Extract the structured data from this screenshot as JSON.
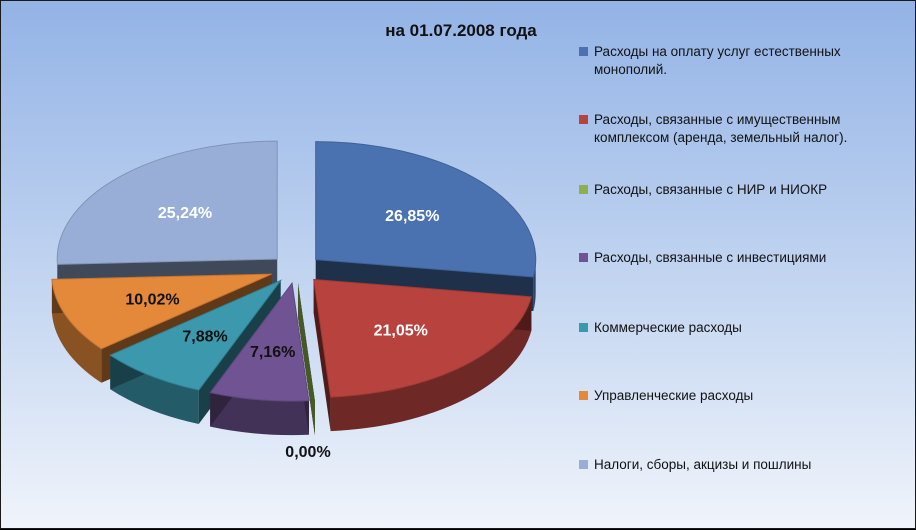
{
  "chart_data": {
    "type": "pie",
    "title": "на 01.07.2008 года",
    "legend_position": "right",
    "series": [
      {
        "name": "Расходы на оплату услуг естественных монополий.",
        "value": 26.85,
        "label": "26,85%",
        "color": "#4a72b0"
      },
      {
        "name": "Расходы, связанные с имущественным комплексом (аренда, земельный налог).",
        "value": 21.05,
        "label": "21,05%",
        "color": "#b8433e"
      },
      {
        "name": "Расходы, связанные с НИР и НИОКР",
        "value": 0.0,
        "label": "0,00%",
        "color": "#8daf4f"
      },
      {
        "name": "Расходы, связанные с инвестициями",
        "value": 7.16,
        "label": "7,16%",
        "color": "#6f5393"
      },
      {
        "name": "Коммерческие расходы",
        "value": 7.88,
        "label": "7,88%",
        "color": "#3b98ad"
      },
      {
        "name": "Управленческие расходы",
        "value": 10.02,
        "label": "10,02%",
        "color": "#e4893a"
      },
      {
        "name": "Налоги, сборы, акцизы и пошлины",
        "value": 25.24,
        "label": "25,24%",
        "color": "#98aed6"
      }
    ]
  }
}
